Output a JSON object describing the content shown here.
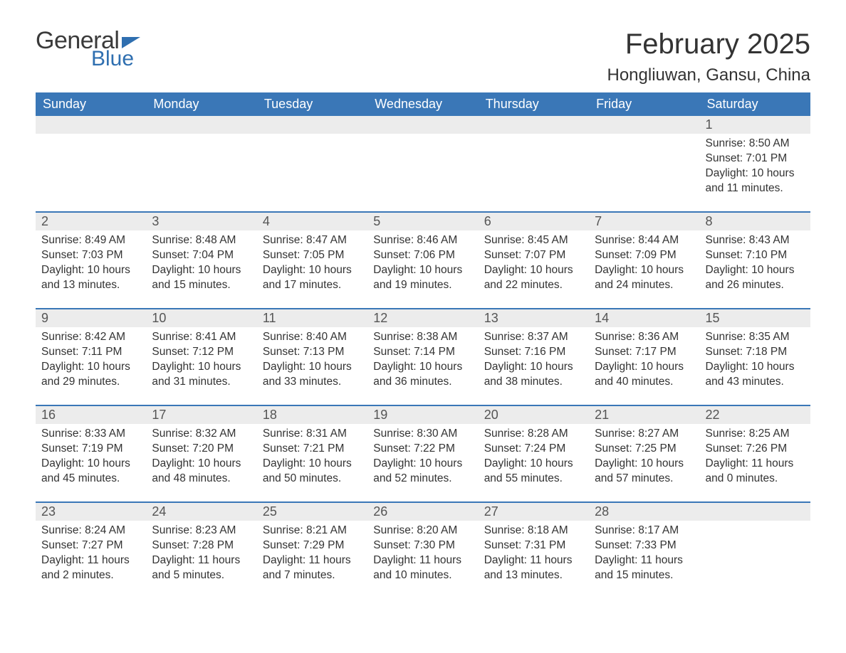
{
  "logo": {
    "text1": "General",
    "text2": "Blue"
  },
  "title": "February 2025",
  "location": "Hongliuwan, Gansu, China",
  "colors": {
    "header_bg": "#3a77b7",
    "header_text": "#ffffff",
    "daynum_bg": "#ececec",
    "rule": "#3a77b7",
    "text": "#333333",
    "logo_gray": "#3a3a3a",
    "logo_blue": "#2f6fb0",
    "page_bg": "#ffffff"
  },
  "weekdays": [
    "Sunday",
    "Monday",
    "Tuesday",
    "Wednesday",
    "Thursday",
    "Friday",
    "Saturday"
  ],
  "weeks": [
    [
      null,
      null,
      null,
      null,
      null,
      null,
      {
        "n": "1",
        "sr": "Sunrise: 8:50 AM",
        "ss": "Sunset: 7:01 PM",
        "dl": "Daylight: 10 hours and 11 minutes."
      }
    ],
    [
      {
        "n": "2",
        "sr": "Sunrise: 8:49 AM",
        "ss": "Sunset: 7:03 PM",
        "dl": "Daylight: 10 hours and 13 minutes."
      },
      {
        "n": "3",
        "sr": "Sunrise: 8:48 AM",
        "ss": "Sunset: 7:04 PM",
        "dl": "Daylight: 10 hours and 15 minutes."
      },
      {
        "n": "4",
        "sr": "Sunrise: 8:47 AM",
        "ss": "Sunset: 7:05 PM",
        "dl": "Daylight: 10 hours and 17 minutes."
      },
      {
        "n": "5",
        "sr": "Sunrise: 8:46 AM",
        "ss": "Sunset: 7:06 PM",
        "dl": "Daylight: 10 hours and 19 minutes."
      },
      {
        "n": "6",
        "sr": "Sunrise: 8:45 AM",
        "ss": "Sunset: 7:07 PM",
        "dl": "Daylight: 10 hours and 22 minutes."
      },
      {
        "n": "7",
        "sr": "Sunrise: 8:44 AM",
        "ss": "Sunset: 7:09 PM",
        "dl": "Daylight: 10 hours and 24 minutes."
      },
      {
        "n": "8",
        "sr": "Sunrise: 8:43 AM",
        "ss": "Sunset: 7:10 PM",
        "dl": "Daylight: 10 hours and 26 minutes."
      }
    ],
    [
      {
        "n": "9",
        "sr": "Sunrise: 8:42 AM",
        "ss": "Sunset: 7:11 PM",
        "dl": "Daylight: 10 hours and 29 minutes."
      },
      {
        "n": "10",
        "sr": "Sunrise: 8:41 AM",
        "ss": "Sunset: 7:12 PM",
        "dl": "Daylight: 10 hours and 31 minutes."
      },
      {
        "n": "11",
        "sr": "Sunrise: 8:40 AM",
        "ss": "Sunset: 7:13 PM",
        "dl": "Daylight: 10 hours and 33 minutes."
      },
      {
        "n": "12",
        "sr": "Sunrise: 8:38 AM",
        "ss": "Sunset: 7:14 PM",
        "dl": "Daylight: 10 hours and 36 minutes."
      },
      {
        "n": "13",
        "sr": "Sunrise: 8:37 AM",
        "ss": "Sunset: 7:16 PM",
        "dl": "Daylight: 10 hours and 38 minutes."
      },
      {
        "n": "14",
        "sr": "Sunrise: 8:36 AM",
        "ss": "Sunset: 7:17 PM",
        "dl": "Daylight: 10 hours and 40 minutes."
      },
      {
        "n": "15",
        "sr": "Sunrise: 8:35 AM",
        "ss": "Sunset: 7:18 PM",
        "dl": "Daylight: 10 hours and 43 minutes."
      }
    ],
    [
      {
        "n": "16",
        "sr": "Sunrise: 8:33 AM",
        "ss": "Sunset: 7:19 PM",
        "dl": "Daylight: 10 hours and 45 minutes."
      },
      {
        "n": "17",
        "sr": "Sunrise: 8:32 AM",
        "ss": "Sunset: 7:20 PM",
        "dl": "Daylight: 10 hours and 48 minutes."
      },
      {
        "n": "18",
        "sr": "Sunrise: 8:31 AM",
        "ss": "Sunset: 7:21 PM",
        "dl": "Daylight: 10 hours and 50 minutes."
      },
      {
        "n": "19",
        "sr": "Sunrise: 8:30 AM",
        "ss": "Sunset: 7:22 PM",
        "dl": "Daylight: 10 hours and 52 minutes."
      },
      {
        "n": "20",
        "sr": "Sunrise: 8:28 AM",
        "ss": "Sunset: 7:24 PM",
        "dl": "Daylight: 10 hours and 55 minutes."
      },
      {
        "n": "21",
        "sr": "Sunrise: 8:27 AM",
        "ss": "Sunset: 7:25 PM",
        "dl": "Daylight: 10 hours and 57 minutes."
      },
      {
        "n": "22",
        "sr": "Sunrise: 8:25 AM",
        "ss": "Sunset: 7:26 PM",
        "dl": "Daylight: 11 hours and 0 minutes."
      }
    ],
    [
      {
        "n": "23",
        "sr": "Sunrise: 8:24 AM",
        "ss": "Sunset: 7:27 PM",
        "dl": "Daylight: 11 hours and 2 minutes."
      },
      {
        "n": "24",
        "sr": "Sunrise: 8:23 AM",
        "ss": "Sunset: 7:28 PM",
        "dl": "Daylight: 11 hours and 5 minutes."
      },
      {
        "n": "25",
        "sr": "Sunrise: 8:21 AM",
        "ss": "Sunset: 7:29 PM",
        "dl": "Daylight: 11 hours and 7 minutes."
      },
      {
        "n": "26",
        "sr": "Sunrise: 8:20 AM",
        "ss": "Sunset: 7:30 PM",
        "dl": "Daylight: 11 hours and 10 minutes."
      },
      {
        "n": "27",
        "sr": "Sunrise: 8:18 AM",
        "ss": "Sunset: 7:31 PM",
        "dl": "Daylight: 11 hours and 13 minutes."
      },
      {
        "n": "28",
        "sr": "Sunrise: 8:17 AM",
        "ss": "Sunset: 7:33 PM",
        "dl": "Daylight: 11 hours and 15 minutes."
      },
      null
    ]
  ]
}
